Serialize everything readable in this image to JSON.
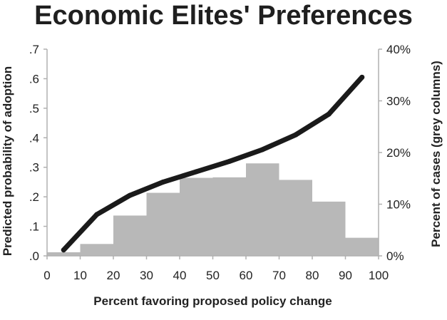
{
  "chart_data": {
    "type": "line",
    "title": "Economic Elites' Preferences",
    "xlabel": "Percent favoring proposed policy change",
    "ylabel_left": "Predicted probability of adoption",
    "ylabel_right": "Percent of cases (grey columns)",
    "xlim": [
      0,
      100
    ],
    "ylim_left": [
      0,
      0.7
    ],
    "ylim_right": [
      0,
      40
    ],
    "x_ticks": [
      "0",
      "10",
      "20",
      "30",
      "40",
      "50",
      "60",
      "70",
      "80",
      "90",
      "100"
    ],
    "y_left_ticks": [
      ".0",
      ".1",
      ".2",
      ".3",
      ".4",
      ".5",
      ".6",
      ".7"
    ],
    "y_right_ticks": [
      "0%",
      "10%",
      "20%",
      "30%",
      "40%"
    ],
    "grid": false,
    "series": [
      {
        "axis": "left",
        "type": "line",
        "color": "#1a1a1a",
        "x": [
          5,
          15,
          25,
          35,
          45,
          55,
          65,
          75,
          85,
          95
        ],
        "y": [
          0.02,
          0.14,
          0.205,
          0.25,
          0.285,
          0.32,
          0.36,
          0.41,
          0.48,
          0.605
        ]
      },
      {
        "axis": "right",
        "type": "bar",
        "color": "#b8b8b8",
        "bins": [
          [
            0,
            10
          ],
          [
            10,
            20
          ],
          [
            20,
            30
          ],
          [
            30,
            40
          ],
          [
            40,
            50
          ],
          [
            50,
            60
          ],
          [
            60,
            70
          ],
          [
            70,
            80
          ],
          [
            80,
            90
          ],
          [
            90,
            100
          ]
        ],
        "values": [
          0.7,
          2.3,
          7.8,
          12.2,
          15.1,
          15.2,
          17.9,
          14.7,
          10.5,
          3.5
        ]
      }
    ]
  }
}
